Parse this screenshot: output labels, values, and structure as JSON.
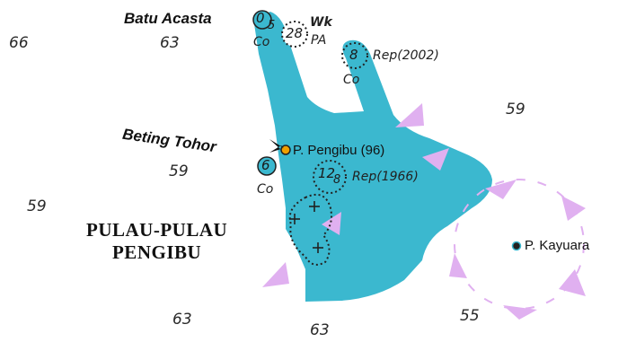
{
  "soundings": [
    "66",
    "63",
    "59",
    "59",
    "59",
    "63",
    "63",
    "55"
  ],
  "places": {
    "batu_acasta": "Batu Acasta",
    "beting_tohor": "Beting Tohor",
    "island_group_line1": "PULAU-PULAU",
    "island_group_line2": "PENGIBU",
    "pengibu": "P. Pengibu (96)",
    "kayuara": "P. Kayuara"
  },
  "rocks": {
    "acasta_depth": "0",
    "acasta_depth_sub": "5",
    "tohor_depth": "6",
    "wreck_depth": "28",
    "rep2002_depth": "8",
    "rep1966_depth": "12",
    "rep1966_depth_sub": "8"
  },
  "notes": {
    "co_acasta": "Co",
    "wk": "Wk",
    "pa": "PA",
    "rep2002": "Rep(2002)",
    "co_rep2002": "Co",
    "rep1966": "Rep(1966)",
    "co_tohor": "Co"
  },
  "colors": {
    "reef": "#3bb8cf",
    "danger_sector": "#e0b0f0",
    "island_marker": "#f0a000"
  },
  "icons": [
    "light-flare-icon",
    "rock-cross-marks"
  ]
}
